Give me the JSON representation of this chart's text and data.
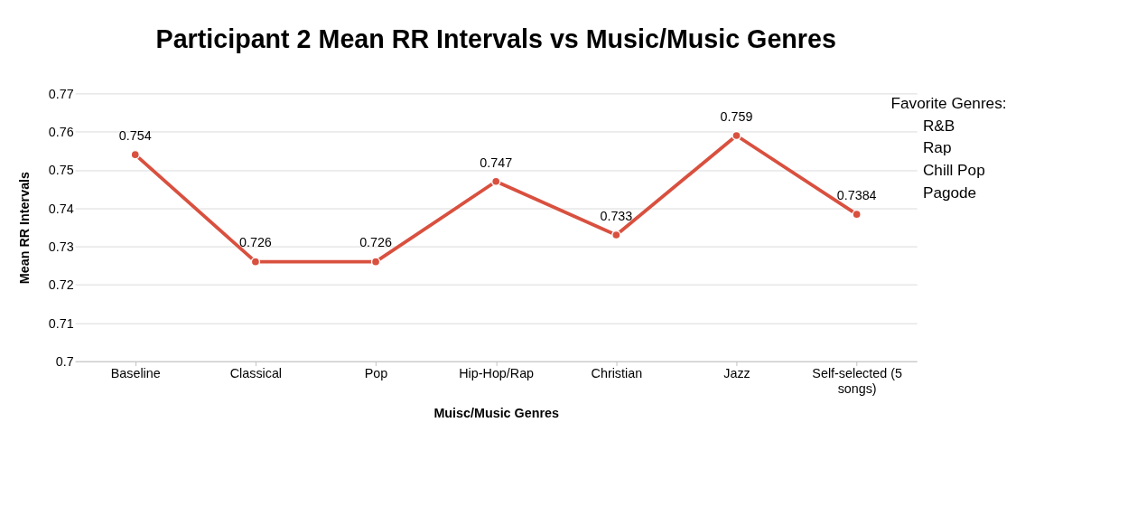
{
  "chart_data": {
    "type": "line",
    "title": "Participant 2 Mean RR Intervals vs Music/Music Genres",
    "xlabel": "Muisc/Music Genres",
    "ylabel": "Mean RR Intervals",
    "categories": [
      "Baseline",
      "Classical",
      "Pop",
      "Hip-Hop/Rap",
      "Christian",
      "Jazz",
      "Self-selected (5 songs)"
    ],
    "series": [
      {
        "color": "#d9503f",
        "values": [
          0.754,
          0.726,
          0.726,
          0.747,
          0.733,
          0.759,
          0.7384
        ]
      }
    ],
    "ylim": [
      0.7,
      0.77
    ],
    "yticks": [
      0.7,
      0.71,
      0.72,
      0.73,
      0.74,
      0.75,
      0.76,
      0.77
    ],
    "grid": "y",
    "marker": "circle",
    "line_style": "solid",
    "data_labels": true,
    "annotations": [
      "Favorite Genres:",
      "R&B",
      "Rap",
      "Chill Pop",
      "Pagode"
    ]
  }
}
